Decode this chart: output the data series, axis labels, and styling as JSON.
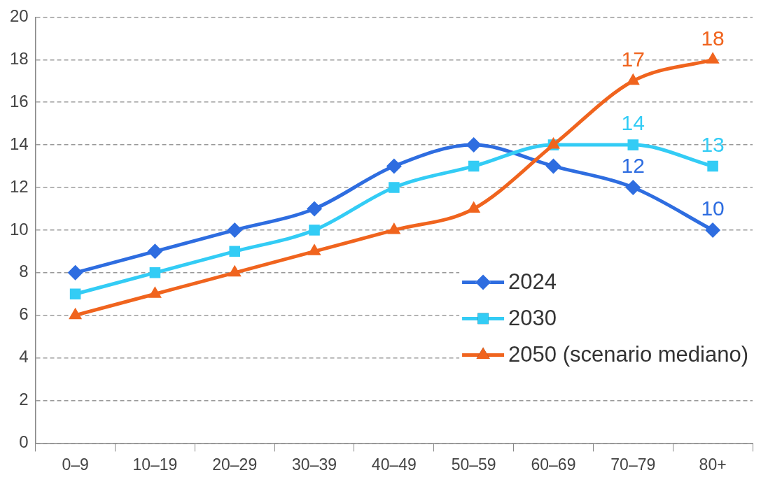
{
  "chart_data": {
    "type": "line",
    "categories": [
      "0–9",
      "10–19",
      "20–29",
      "30–39",
      "40–49",
      "50–59",
      "60–69",
      "70–79",
      "80+"
    ],
    "series": [
      {
        "name": "2024",
        "color": "#2e6de0",
        "marker": "diamond",
        "values": [
          8,
          9,
          10,
          11,
          13,
          14,
          13,
          12,
          10
        ],
        "value_labels": [
          null,
          null,
          null,
          null,
          null,
          null,
          null,
          "12",
          "10"
        ]
      },
      {
        "name": "2030",
        "color": "#33ccf5",
        "marker": "square",
        "values": [
          7,
          8,
          9,
          10,
          12,
          13,
          14,
          14,
          13
        ],
        "value_labels": [
          null,
          null,
          null,
          null,
          null,
          null,
          null,
          "14",
          "13"
        ]
      },
      {
        "name": "2050 (scenario mediano)",
        "color": "#f0641e",
        "marker": "triangle",
        "values": [
          6,
          7,
          8,
          9,
          10,
          11,
          14,
          17,
          18
        ],
        "value_labels": [
          null,
          null,
          null,
          null,
          null,
          null,
          null,
          "17",
          "18"
        ]
      }
    ],
    "ylim": [
      0,
      20
    ],
    "yticks": [
      0,
      2,
      4,
      6,
      8,
      10,
      12,
      14,
      16,
      18,
      20
    ],
    "grid": "y",
    "legend": "bottom right",
    "line_style": "solid"
  }
}
